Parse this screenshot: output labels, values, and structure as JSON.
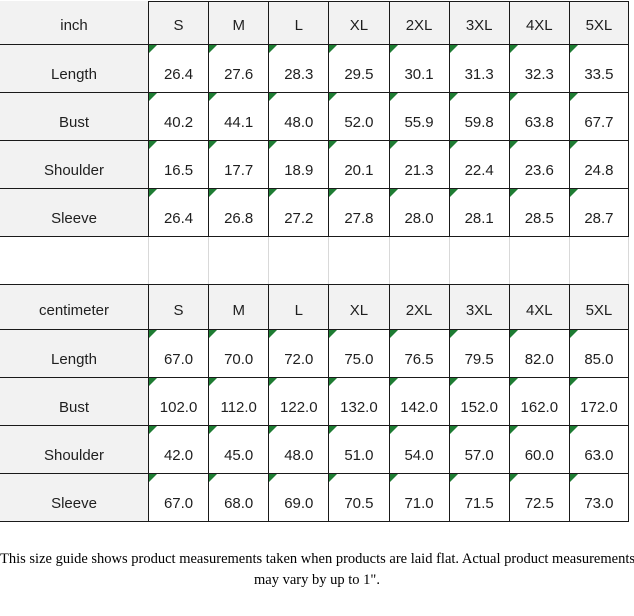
{
  "colors": {
    "border": "#1a1a1a",
    "header_and_label_bg": "#f2f2f2",
    "gap_gridline": "#d9d9d9",
    "corner_marker_green": "#1e7c33",
    "page_bg": "#ffffff"
  },
  "chart_data": [
    {
      "type": "table",
      "title": "inch",
      "columns": [
        "S",
        "M",
        "L",
        "XL",
        "2XL",
        "3XL",
        "4XL",
        "5XL"
      ],
      "rows": [
        {
          "label": "Length",
          "values": [
            "26.4",
            "27.6",
            "28.3",
            "29.5",
            "30.1",
            "31.3",
            "32.3",
            "33.5"
          ]
        },
        {
          "label": "Bust",
          "values": [
            "40.2",
            "44.1",
            "48.0",
            "52.0",
            "55.9",
            "59.8",
            "63.8",
            "67.7"
          ]
        },
        {
          "label": "Shoulder",
          "values": [
            "16.5",
            "17.7",
            "18.9",
            "20.1",
            "21.3",
            "22.4",
            "23.6",
            "24.8"
          ]
        },
        {
          "label": "Sleeve",
          "values": [
            "26.4",
            "26.8",
            "27.2",
            "27.8",
            "28.0",
            "28.1",
            "28.5",
            "28.7"
          ]
        }
      ]
    },
    {
      "type": "table",
      "title": "centimeter",
      "columns": [
        "S",
        "M",
        "L",
        "XL",
        "2XL",
        "3XL",
        "4XL",
        "5XL"
      ],
      "rows": [
        {
          "label": "Length",
          "values": [
            "67.0",
            "70.0",
            "72.0",
            "75.0",
            "76.5",
            "79.5",
            "82.0",
            "85.0"
          ]
        },
        {
          "label": "Bust",
          "values": [
            "102.0",
            "112.0",
            "122.0",
            "132.0",
            "142.0",
            "152.0",
            "162.0",
            "172.0"
          ]
        },
        {
          "label": "Shoulder",
          "values": [
            "42.0",
            "45.0",
            "48.0",
            "51.0",
            "54.0",
            "57.0",
            "60.0",
            "63.0"
          ]
        },
        {
          "label": "Sleeve",
          "values": [
            "67.0",
            "68.0",
            "69.0",
            "70.5",
            "71.0",
            "71.5",
            "72.5",
            "73.0"
          ]
        }
      ]
    }
  ],
  "footer": {
    "line1": "This size guide shows product measurements taken when products are laid flat. Actual product measurements",
    "line2": "may vary by up to 1\"."
  }
}
